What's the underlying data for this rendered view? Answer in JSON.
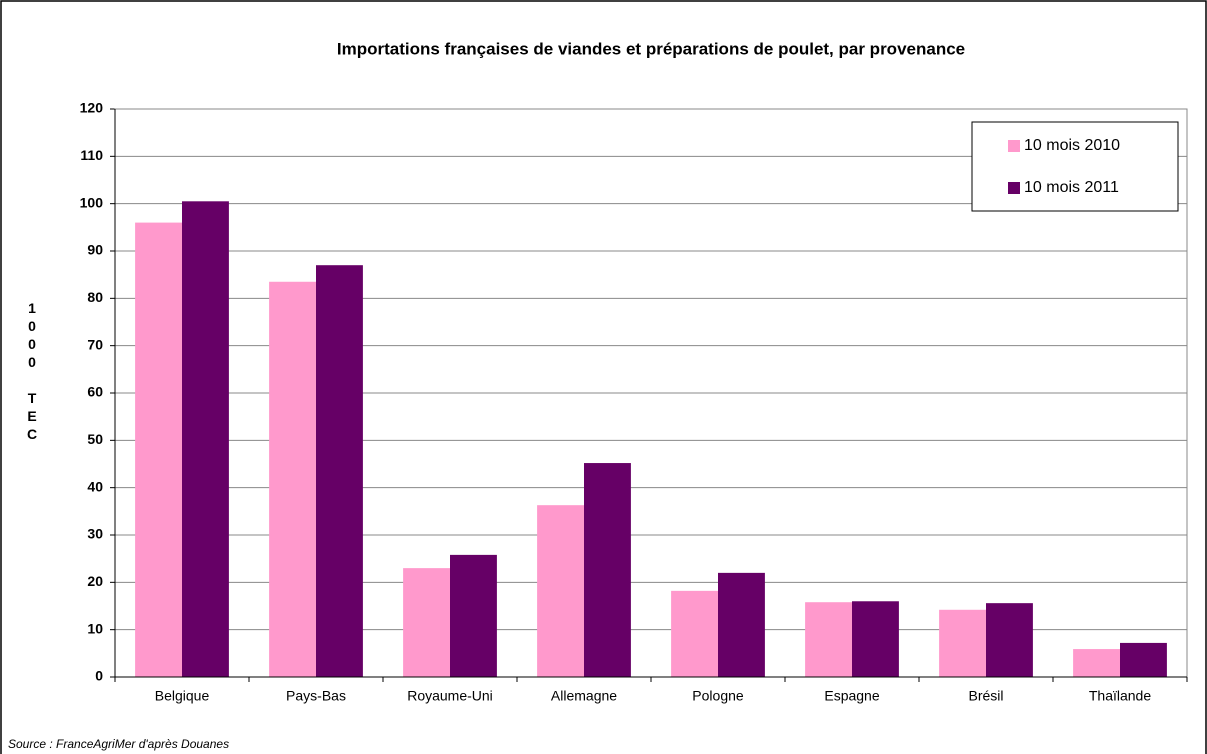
{
  "chart_data": {
    "type": "bar",
    "title": "Importations françaises de viandes et préparations de poulet, par provenance",
    "y_label": "1000 TEC",
    "source": "Source : FranceAgriMer d'après Douanes",
    "categories": [
      "Belgique",
      "Pays-Bas",
      "Royaume-Uni",
      "Allemagne",
      "Pologne",
      "Espagne",
      "Brésil",
      "Thaïlande"
    ],
    "series": [
      {
        "name": "10 mois 2010",
        "color": "#ff99cc",
        "values": [
          96,
          83.5,
          23,
          36.3,
          18.2,
          15.8,
          14.2,
          5.9
        ]
      },
      {
        "name": "10 mois 2011",
        "color": "#660066",
        "values": [
          100.5,
          87,
          25.8,
          45.2,
          22,
          16,
          15.6,
          7.2
        ]
      }
    ],
    "ylim": [
      0,
      120
    ],
    "yticks": [
      0,
      10,
      20,
      30,
      40,
      50,
      60,
      70,
      80,
      90,
      100,
      110,
      120
    ],
    "grid": true,
    "legend": "top-right"
  }
}
